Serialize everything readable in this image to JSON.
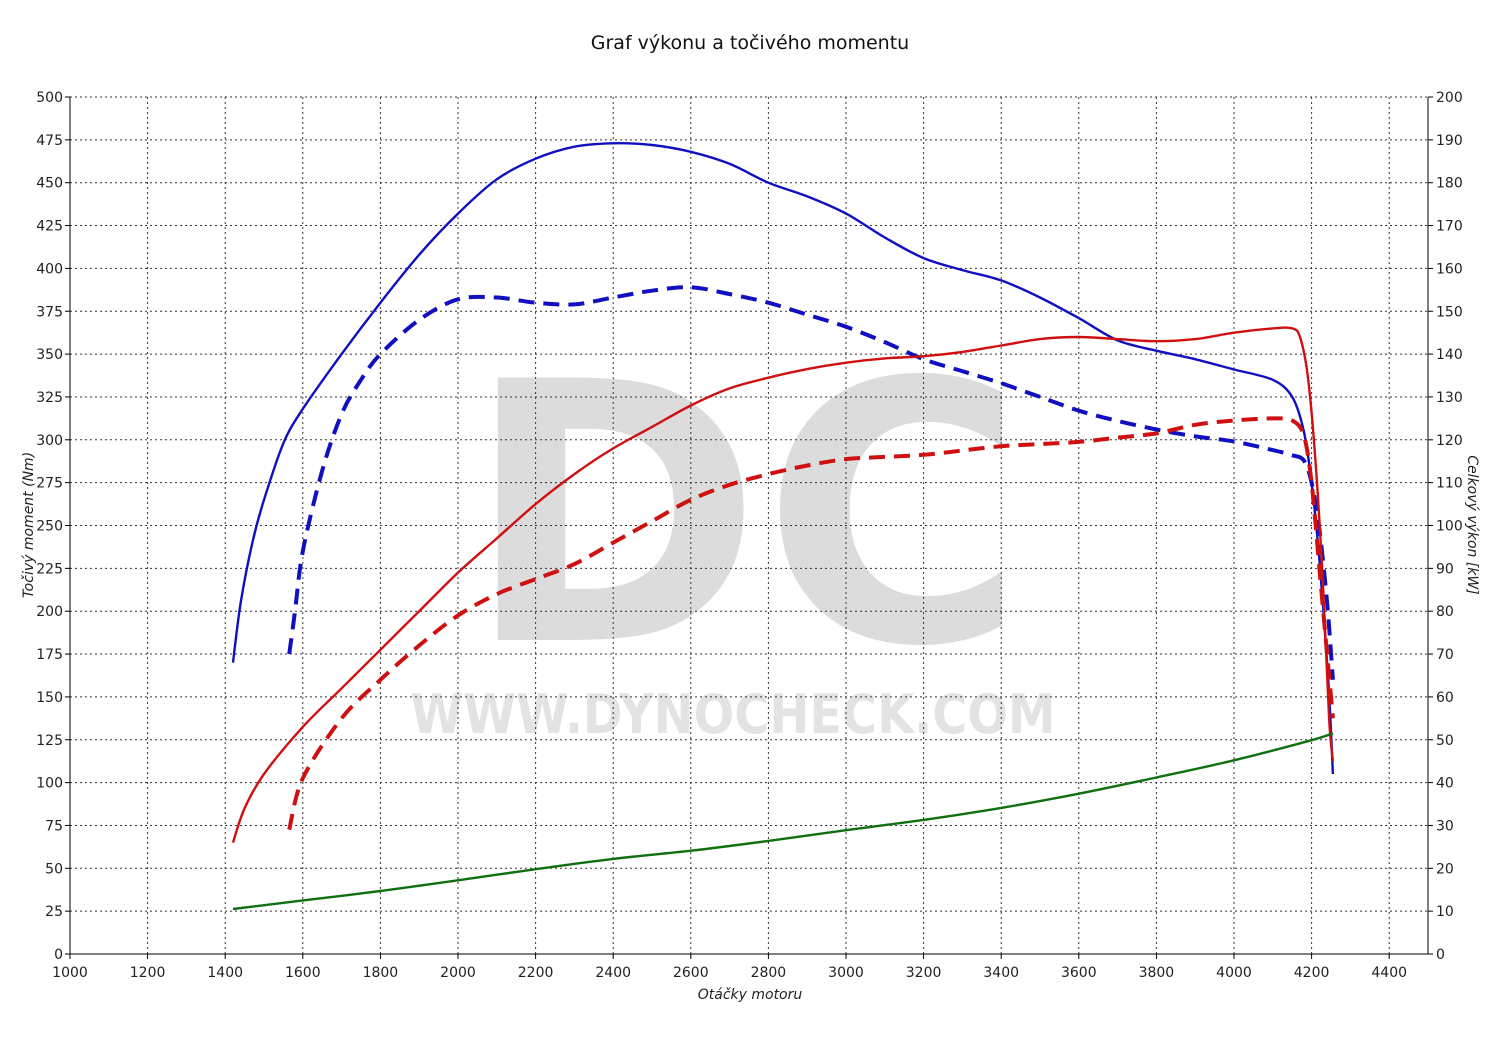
{
  "title": "Graf výkonu a točivého momentu",
  "watermark": {
    "logo": "DC",
    "url": "WWW.DYNOCHECK.COM"
  },
  "colors": {
    "torque": "#1010c0",
    "power": "#d01010",
    "loss": "#107010",
    "grid": "#333333"
  },
  "chart_data": {
    "type": "line",
    "title": "Graf výkonu a točivého momentu",
    "xlabel": "Otáčky motoru",
    "ylabel_left": "Točivý moment (Nm)",
    "ylabel_right": "Celkový výkon [kW]",
    "xlim": [
      1000,
      4500
    ],
    "ylim_left": [
      0,
      500
    ],
    "ylim_right": [
      0,
      200
    ],
    "x_ticks": [
      1000,
      1200,
      1400,
      1600,
      1800,
      2000,
      2200,
      2400,
      2600,
      2800,
      3000,
      3200,
      3400,
      3600,
      3800,
      4000,
      4200,
      4400
    ],
    "y_ticks_left": [
      0,
      25,
      50,
      75,
      100,
      125,
      150,
      175,
      200,
      225,
      250,
      275,
      300,
      325,
      350,
      375,
      400,
      425,
      450,
      475,
      500
    ],
    "y_ticks_right": [
      0,
      10,
      20,
      30,
      40,
      50,
      60,
      70,
      80,
      90,
      100,
      110,
      120,
      130,
      140,
      150,
      160,
      170,
      180,
      190,
      200
    ],
    "grid": true,
    "series": [
      {
        "axis": "left",
        "color": "#1010c0",
        "style": "solid",
        "x": [
          1420,
          1440,
          1470,
          1500,
          1550,
          1600,
          1700,
          1800,
          1900,
          2000,
          2100,
          2200,
          2300,
          2400,
          2500,
          2600,
          2700,
          2800,
          2900,
          3000,
          3100,
          3200,
          3300,
          3400,
          3500,
          3600,
          3700,
          3800,
          3900,
          4000,
          4100,
          4150,
          4180,
          4200,
          4220,
          4240,
          4250,
          4255
        ],
        "y": [
          170,
          205,
          240,
          265,
          298,
          318,
          350,
          380,
          408,
          432,
          452,
          464,
          471,
          473,
          472,
          468,
          461,
          450,
          442,
          432,
          418,
          406,
          399,
          393,
          383,
          371,
          358,
          352,
          347,
          341,
          335,
          325,
          305,
          275,
          230,
          170,
          130,
          105
        ]
      },
      {
        "axis": "left",
        "color": "#1010c0",
        "style": "dashed",
        "x": [
          1565,
          1580,
          1600,
          1650,
          1700,
          1750,
          1800,
          1900,
          2000,
          2100,
          2200,
          2300,
          2400,
          2500,
          2600,
          2700,
          2800,
          2900,
          3000,
          3100,
          3200,
          3300,
          3400,
          3500,
          3600,
          3700,
          3800,
          3900,
          4000,
          4100,
          4150,
          4180,
          4200,
          4220,
          4240,
          4255
        ],
        "y": [
          175,
          200,
          235,
          282,
          315,
          335,
          350,
          370,
          382,
          383,
          380,
          379,
          383,
          387,
          389,
          385,
          380,
          373,
          366,
          357,
          347,
          340,
          333,
          325,
          317,
          311,
          306,
          302,
          299,
          294,
          291,
          288,
          275,
          248,
          205,
          160
        ]
      },
      {
        "axis": "right",
        "color": "#d01010",
        "style": "solid",
        "x": [
          1420,
          1450,
          1500,
          1600,
          1700,
          1800,
          1900,
          2000,
          2100,
          2200,
          2300,
          2400,
          2500,
          2600,
          2700,
          2800,
          2900,
          3000,
          3100,
          3200,
          3300,
          3400,
          3500,
          3600,
          3700,
          3800,
          3900,
          4000,
          4100,
          4150,
          4170,
          4190,
          4210,
          4230,
          4245,
          4255
        ],
        "y": [
          26,
          34,
          42,
          53,
          62,
          71,
          80,
          89,
          97,
          105,
          112,
          118,
          123,
          128,
          132,
          134.5,
          136.5,
          138,
          139,
          139.5,
          140.5,
          142,
          143.5,
          144,
          143.5,
          143,
          143.5,
          145,
          146,
          146,
          144,
          135,
          115,
          85,
          55,
          45
        ]
      },
      {
        "axis": "right",
        "color": "#d01010",
        "style": "dashed",
        "x": [
          1565,
          1600,
          1700,
          1800,
          1900,
          2000,
          2100,
          2200,
          2300,
          2400,
          2500,
          2600,
          2700,
          2800,
          2900,
          3000,
          3100,
          3200,
          3300,
          3400,
          3500,
          3600,
          3700,
          3800,
          3900,
          4000,
          4100,
          4150,
          4180,
          4200,
          4220,
          4240,
          4255
        ],
        "y": [
          29,
          41,
          55,
          64,
          72,
          79,
          84,
          87.5,
          91,
          96,
          101,
          106,
          109.5,
          112,
          114,
          115.5,
          116,
          116.5,
          117.5,
          118.5,
          119,
          119.5,
          120.5,
          121.5,
          123.5,
          124.5,
          125,
          124.5,
          121,
          110,
          90,
          70,
          55
        ]
      },
      {
        "axis": "right",
        "color": "#107010",
        "style": "solid",
        "x": [
          1420,
          1600,
          1800,
          2000,
          2200,
          2400,
          2600,
          2800,
          3000,
          3200,
          3400,
          3600,
          3800,
          4000,
          4200,
          4255
        ],
        "y": [
          10.5,
          12.5,
          14.7,
          17.2,
          19.8,
          22.2,
          24.1,
          26.4,
          28.9,
          31.3,
          34.1,
          37.4,
          41.2,
          45.2,
          49.9,
          51.5
        ]
      }
    ]
  }
}
